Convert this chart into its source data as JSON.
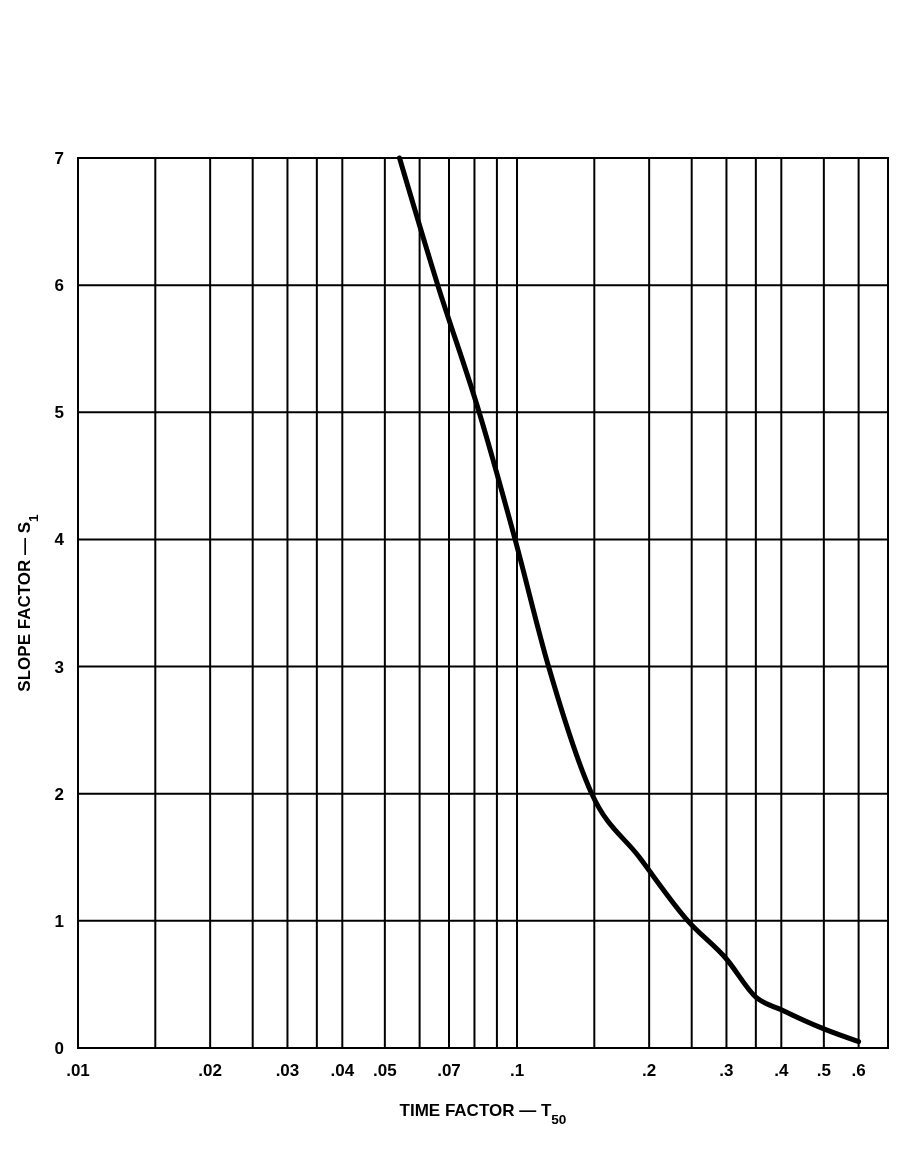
{
  "chart_data": {
    "type": "line",
    "xlabel": "TIME FACTOR — T$_{50}$",
    "ylabel": "SLOPE FACTOR — S$_{1}$",
    "log": "x",
    "grid": true,
    "marker": "none",
    "line_style": "solid",
    "xlim": [
      0.01,
      0.7
    ],
    "ylim": [
      0,
      7
    ],
    "xticks": [
      {
        "value": 0.01,
        "label": ".01"
      },
      {
        "value": 0.015,
        "label": null
      },
      {
        "value": 0.02,
        "label": ".02"
      },
      {
        "value": 0.025,
        "label": null
      },
      {
        "value": 0.03,
        "label": ".03"
      },
      {
        "value": 0.035,
        "label": null
      },
      {
        "value": 0.04,
        "label": ".04"
      },
      {
        "value": 0.05,
        "label": ".05"
      },
      {
        "value": 0.06,
        "label": null
      },
      {
        "value": 0.07,
        "label": ".07"
      },
      {
        "value": 0.08,
        "label": null
      },
      {
        "value": 0.09,
        "label": null
      },
      {
        "value": 0.1,
        "label": ".1"
      },
      {
        "value": 0.15,
        "label": null
      },
      {
        "value": 0.2,
        "label": ".2"
      },
      {
        "value": 0.25,
        "label": null
      },
      {
        "value": 0.3,
        "label": ".3"
      },
      {
        "value": 0.35,
        "label": null
      },
      {
        "value": 0.4,
        "label": ".4"
      },
      {
        "value": 0.5,
        "label": ".5"
      },
      {
        "value": 0.6,
        "label": ".6"
      },
      {
        "value": 0.7,
        "label": null
      }
    ],
    "yticks": [
      0,
      1,
      2,
      3,
      4,
      5,
      6,
      7
    ],
    "series": [
      {
        "color": "#000000",
        "x": [
          0.054,
          0.066,
          0.082,
          0.099,
          0.118,
          0.148,
          0.19,
          0.245,
          0.3,
          0.35,
          0.4,
          0.5,
          0.6
        ],
        "values": [
          7,
          6,
          5,
          4,
          3,
          2,
          1.5,
          1,
          0.7,
          0.4,
          0.3,
          0.15,
          0.05
        ]
      }
    ]
  }
}
